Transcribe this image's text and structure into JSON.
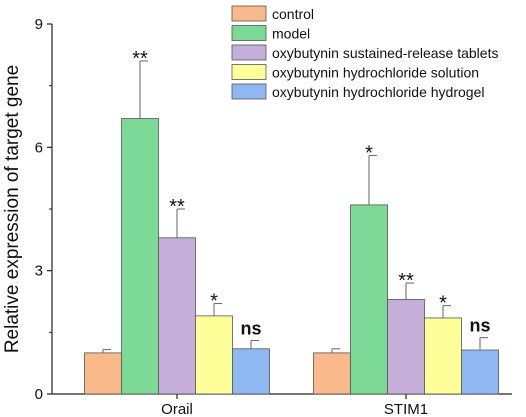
{
  "chart_data": {
    "type": "bar",
    "title": "",
    "xlabel": "",
    "ylabel": "Relative expression of target gene",
    "ylim": [
      0,
      9
    ],
    "yticks": [
      0,
      3,
      6,
      9
    ],
    "categories": [
      "Orail",
      "STIM1"
    ],
    "grid": false,
    "legend_position": "top-right",
    "error_bars": true,
    "series": [
      {
        "name": "control",
        "color": "#F9B98B",
        "values": [
          1.0,
          1.0
        ],
        "errors": [
          0.08,
          0.1
        ],
        "annotations": [
          "",
          ""
        ]
      },
      {
        "name": "model",
        "color": "#7DD996",
        "values": [
          6.7,
          4.6
        ],
        "errors": [
          1.4,
          1.2
        ],
        "annotations": [
          "**",
          "*"
        ]
      },
      {
        "name": "oxybutynin sustained-release tablets",
        "color": "#C5AED9",
        "values": [
          3.8,
          2.3
        ],
        "errors": [
          0.7,
          0.4
        ],
        "annotations": [
          "**",
          "**"
        ]
      },
      {
        "name": "oxybutynin hydrochloride solution",
        "color": "#FFFF99",
        "values": [
          1.9,
          1.85
        ],
        "errors": [
          0.3,
          0.3
        ],
        "annotations": [
          "*",
          "*"
        ]
      },
      {
        "name": "oxybutynin hydrochloride hydrogel",
        "color": "#8FB8F2",
        "values": [
          1.1,
          1.07
        ],
        "errors": [
          0.2,
          0.3
        ],
        "annotations": [
          "ns",
          "ns"
        ]
      }
    ]
  }
}
